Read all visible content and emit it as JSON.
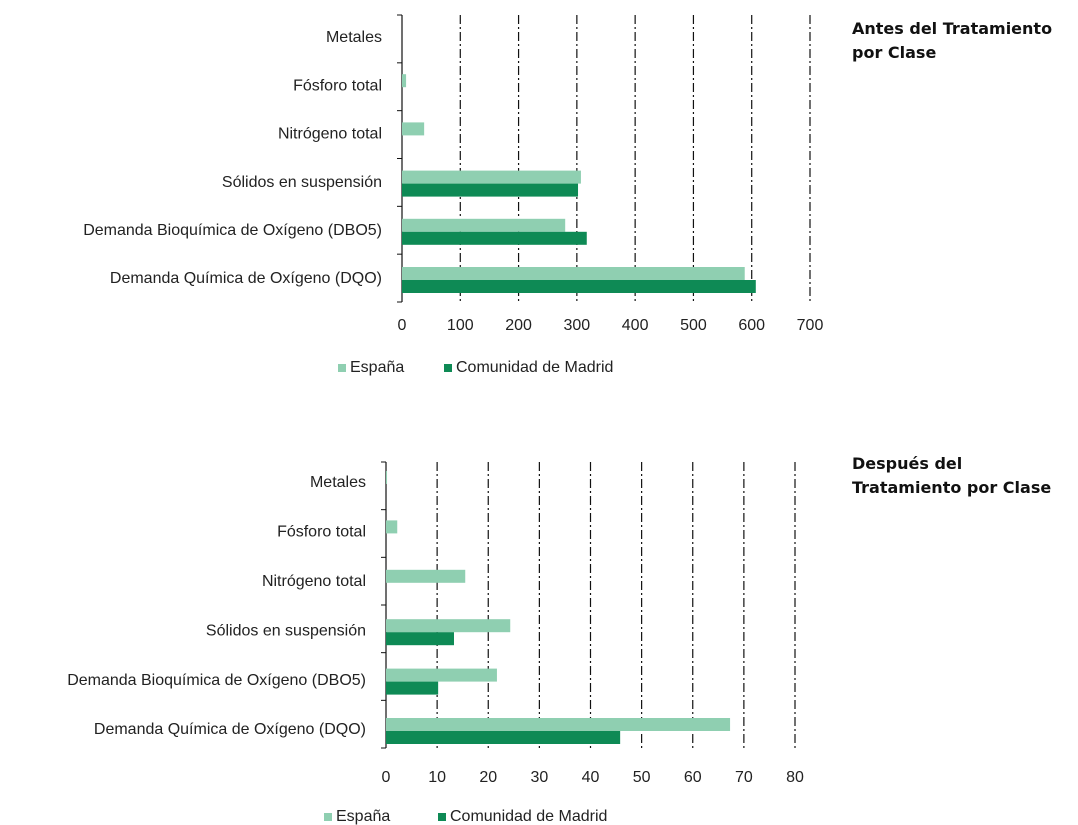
{
  "chart_data": [
    {
      "type": "barh",
      "title": "Antes del Tratamiento por Clase",
      "categories": [
        "Metales",
        "Fósforo total",
        "Nitrógeno total",
        "Sólidos en suspensión",
        "Demanda Bioquímica de Oxígeno (DBO5)",
        "Demanda Química de Oxígeno (DQO)"
      ],
      "series": [
        {
          "name": "España",
          "color": "#8fcfb1",
          "values": [
            0,
            7,
            38,
            307,
            280,
            588
          ]
        },
        {
          "name": "Comunidad de Madrid",
          "color": "#0e8a55",
          "values": [
            0,
            0,
            0,
            302,
            317,
            607
          ]
        }
      ],
      "xlim": [
        0,
        700
      ],
      "xticks": [
        0,
        100,
        200,
        300,
        400,
        500,
        600,
        700
      ],
      "grid": true,
      "legend": "bottom"
    },
    {
      "type": "barh",
      "title": "Después del Tratamiento por Clase",
      "categories": [
        "Metales",
        "Fósforo total",
        "Nitrógeno total",
        "Sólidos en suspensión",
        "Demanda Bioquímica de Oxígeno (DBO5)",
        "Demanda Química de Oxígeno (DQO)"
      ],
      "series": [
        {
          "name": "España",
          "color": "#8fcfb1",
          "values": [
            0.2,
            2.2,
            15.5,
            24.3,
            21.7,
            67.3
          ]
        },
        {
          "name": "Comunidad de Madrid",
          "color": "#0e8a55",
          "values": [
            0,
            0,
            0,
            13.3,
            10.2,
            45.8
          ]
        }
      ],
      "xlim": [
        0,
        80
      ],
      "xticks": [
        0,
        10,
        20,
        30,
        40,
        50,
        60,
        70,
        80
      ],
      "grid": true,
      "legend": "bottom"
    }
  ]
}
